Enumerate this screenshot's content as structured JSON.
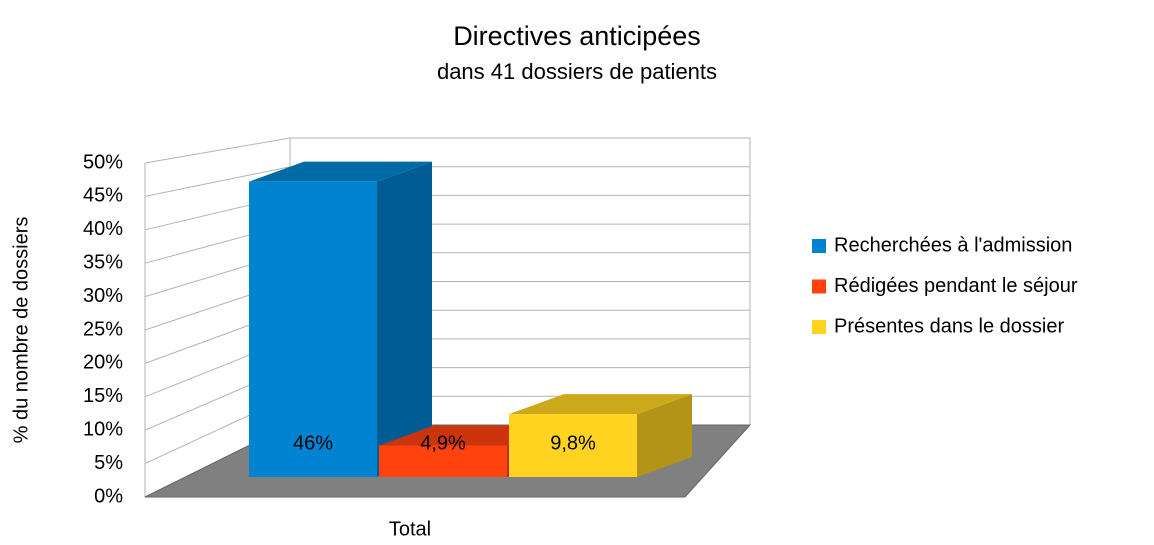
{
  "chart_data": {
    "type": "bar3d",
    "title": "Directives anticipées",
    "subtitle": "dans 41 dossiers de patients",
    "y_label": "% du nombre de dossiers",
    "categories": [
      "Total"
    ],
    "series": [
      {
        "name": "Recherchées à l'admission",
        "color": "#0084d1",
        "values": [
          46
        ],
        "value_labels": [
          "46%"
        ]
      },
      {
        "name": "Rédigées pendant le séjour",
        "color": "#ff420e",
        "values": [
          4.9
        ],
        "value_labels": [
          "4,9%"
        ]
      },
      {
        "name": "Présentes dans le dossier",
        "color": "#ffd320",
        "values": [
          9.8
        ],
        "value_labels": [
          "9,8%"
        ]
      }
    ],
    "ylim": [
      0,
      50
    ],
    "yticks": [
      {
        "value": 0,
        "label": "0%"
      },
      {
        "value": 5,
        "label": "5%"
      },
      {
        "value": 10,
        "label": "10%"
      },
      {
        "value": 15,
        "label": "15%"
      },
      {
        "value": 20,
        "label": "20%"
      },
      {
        "value": 25,
        "label": "25%"
      },
      {
        "value": 30,
        "label": "30%"
      },
      {
        "value": 35,
        "label": "35%"
      },
      {
        "value": 40,
        "label": "40%"
      },
      {
        "value": 45,
        "label": "45%"
      },
      {
        "value": 50,
        "label": "50%"
      }
    ],
    "grid": true,
    "legend": "right"
  }
}
